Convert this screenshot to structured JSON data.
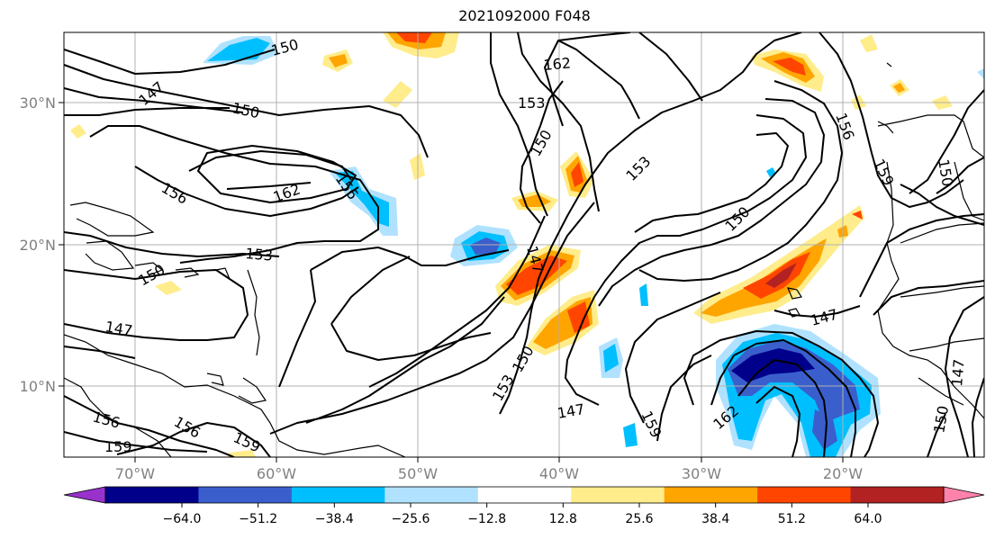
{
  "title": "2021092000 F048",
  "map": {
    "longitude_labels": [
      "70°W",
      "60°W",
      "50°W",
      "40°W",
      "30°W",
      "20°W"
    ],
    "latitude_labels": [
      "30°N",
      "20°N",
      "10°N"
    ],
    "extent": {
      "lon_min": -75,
      "lon_max": -10,
      "lat_min": 5,
      "lat_max": 35
    },
    "gridlines": true,
    "contour_labels": [
      "147",
      "150",
      "150",
      "156",
      "162",
      "156",
      "153",
      "150",
      "147",
      "156",
      "159",
      "156",
      "159",
      "162",
      "153",
      "150",
      "153",
      "150",
      "156",
      "159",
      "150",
      "147",
      "147",
      "147",
      "159",
      "162",
      "153",
      "150",
      "147"
    ]
  },
  "colorbar": {
    "tick_labels": [
      "−64.0",
      "−51.2",
      "−38.4",
      "−25.6",
      "−12.8",
      "12.8",
      "25.6",
      "38.4",
      "51.2",
      "64.0"
    ],
    "colors": [
      "#9932CC",
      "#00008B",
      "#3A5FCD",
      "#00BFFF",
      "#B0E2FF",
      "#FFFFFF",
      "#FFEC8B",
      "#FFA500",
      "#FF4500",
      "#B22222",
      "#FF82AB"
    ]
  }
}
